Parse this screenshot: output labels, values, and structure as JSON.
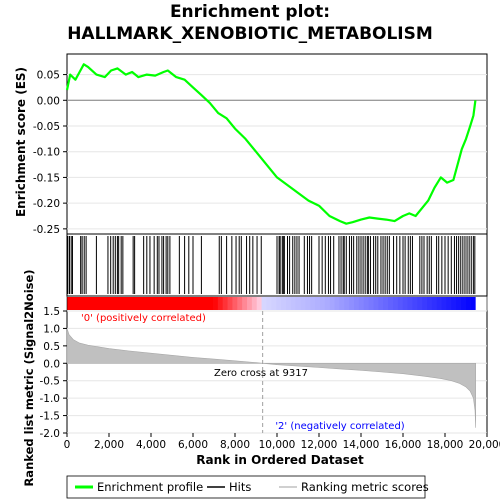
{
  "chart_data": {
    "type": "line",
    "title_line1": "Enrichment plot:",
    "title_line2": "HALLMARK_XENOBIOTIC_METABOLISM",
    "es_panel": {
      "ylabel": "Enrichment score (ES)",
      "ylim": [
        -0.26,
        0.09
      ],
      "yticks": [
        "0.05",
        "0.00",
        "-0.05",
        "-0.10",
        "-0.15",
        "-0.20",
        "-0.25"
      ],
      "ytick_values": [
        0.05,
        0.0,
        -0.05,
        -0.1,
        -0.15,
        -0.2,
        -0.25
      ],
      "series": [
        {
          "name": "Enrichment profile",
          "color": "#00ff00",
          "x": [
            0,
            150,
            400,
            600,
            800,
            1000,
            1400,
            1800,
            2100,
            2400,
            2800,
            3100,
            3400,
            3800,
            4200,
            4600,
            4800,
            5200,
            5600,
            6000,
            6400,
            6800,
            7200,
            7600,
            8000,
            8500,
            9000,
            9500,
            10000,
            10500,
            11000,
            11500,
            12000,
            12500,
            13000,
            13300,
            13600,
            14000,
            14400,
            14800,
            15200,
            15600,
            16000,
            16300,
            16600,
            16900,
            17200,
            17500,
            17800,
            18100,
            18400,
            18600,
            18800,
            19000,
            19200,
            19350,
            19450
          ],
          "y": [
            0.02,
            0.05,
            0.04,
            0.055,
            0.07,
            0.065,
            0.05,
            0.045,
            0.058,
            0.062,
            0.05,
            0.055,
            0.045,
            0.05,
            0.048,
            0.055,
            0.058,
            0.045,
            0.04,
            0.025,
            0.01,
            -0.005,
            -0.025,
            -0.035,
            -0.055,
            -0.075,
            -0.1,
            -0.125,
            -0.15,
            -0.165,
            -0.18,
            -0.195,
            -0.205,
            -0.225,
            -0.235,
            -0.24,
            -0.237,
            -0.232,
            -0.228,
            -0.23,
            -0.232,
            -0.235,
            -0.225,
            -0.22,
            -0.225,
            -0.21,
            -0.195,
            -0.17,
            -0.15,
            -0.16,
            -0.155,
            -0.125,
            -0.095,
            -0.075,
            -0.05,
            -0.03,
            0.0
          ]
        }
      ],
      "hits": [
        40,
        120,
        200,
        260,
        650,
        720,
        820,
        910,
        1400,
        1950,
        2080,
        2200,
        2300,
        2400,
        2460,
        2580,
        2660,
        3150,
        3220,
        3650,
        3800,
        3950,
        4150,
        4300,
        4380,
        4520,
        4600,
        4720,
        4800,
        4900,
        5350,
        5600,
        5800,
        6000,
        6400,
        7250,
        7350,
        7600,
        7850,
        8050,
        8200,
        8300,
        8550,
        8700,
        8850,
        9050,
        9250,
        10000,
        10100,
        10150,
        10250,
        10300,
        10350,
        10500,
        10600,
        10750,
        10850,
        10950,
        11050,
        11300,
        11450,
        11550,
        11650,
        12000,
        12150,
        12300,
        12450,
        12550,
        12700,
        12950,
        13050,
        13150,
        13200,
        13300,
        13450,
        13550,
        13650,
        13800,
        13900,
        14000,
        14100,
        14200,
        14300,
        14350,
        14450,
        14600,
        14700,
        14800,
        14950,
        15050,
        15150,
        15250,
        15350,
        15550,
        15700,
        15850,
        16000,
        16100,
        16250,
        16350,
        16450,
        16800,
        16900,
        17000,
        17150,
        17250,
        17350,
        17600,
        17700,
        17850,
        18000,
        18150,
        18300,
        18450,
        18550,
        18650,
        18750,
        18850,
        18950,
        19050,
        19150,
        19250,
        19350,
        19420
      ]
    },
    "rank_panel": {
      "xlabel": "Rank in Ordered Dataset",
      "ylabel": "Ranked list metric (Signal2Noise)",
      "xlim": [
        0,
        20000
      ],
      "xticks": [
        "0",
        "2,000",
        "4,000",
        "6,000",
        "8,000",
        "10,000",
        "12,000",
        "14,000",
        "16,000",
        "18,000",
        "20,000"
      ],
      "xtick_values": [
        0,
        2000,
        4000,
        6000,
        8000,
        10000,
        12000,
        14000,
        16000,
        18000,
        20000
      ],
      "ylim": [
        -2.0,
        1.5
      ],
      "yticks": [
        "1.5",
        "1.0",
        "0.5",
        "0.0",
        "-0.5",
        "-1.0",
        "-1.5",
        "-2.0"
      ],
      "ytick_values": [
        1.5,
        1.0,
        0.5,
        0.0,
        -0.5,
        -1.0,
        -1.5,
        -2.0
      ],
      "metric_x": [
        0,
        100,
        300,
        600,
        1000,
        2000,
        3000,
        4000,
        5000,
        6000,
        7000,
        8000,
        9000,
        9317,
        10000,
        11000,
        12000,
        13000,
        14000,
        15000,
        16000,
        17000,
        17800,
        18300,
        18700,
        19000,
        19200,
        19350,
        19430,
        19460
      ],
      "metric_y": [
        1.0,
        0.82,
        0.68,
        0.58,
        0.52,
        0.42,
        0.35,
        0.29,
        0.23,
        0.17,
        0.12,
        0.07,
        0.02,
        0.0,
        -0.04,
        -0.08,
        -0.12,
        -0.16,
        -0.2,
        -0.25,
        -0.3,
        -0.37,
        -0.44,
        -0.5,
        -0.58,
        -0.68,
        -0.8,
        -1.0,
        -1.35,
        -1.85
      ],
      "zero_cross_text": "Zero cross at 9317",
      "zero_cross_x": 9317,
      "pos_label": "'0' (positively correlated)",
      "neg_label": "'2' (negatively correlated)",
      "pos_color": "#ff0000",
      "neg_color": "#0000ff"
    },
    "legend": [
      {
        "label": "Enrichment profile",
        "color": "#00ff00"
      },
      {
        "label": "Hits",
        "color": "#000000"
      },
      {
        "label": "Ranking metric scores",
        "color": "#c0c0c0"
      }
    ]
  }
}
